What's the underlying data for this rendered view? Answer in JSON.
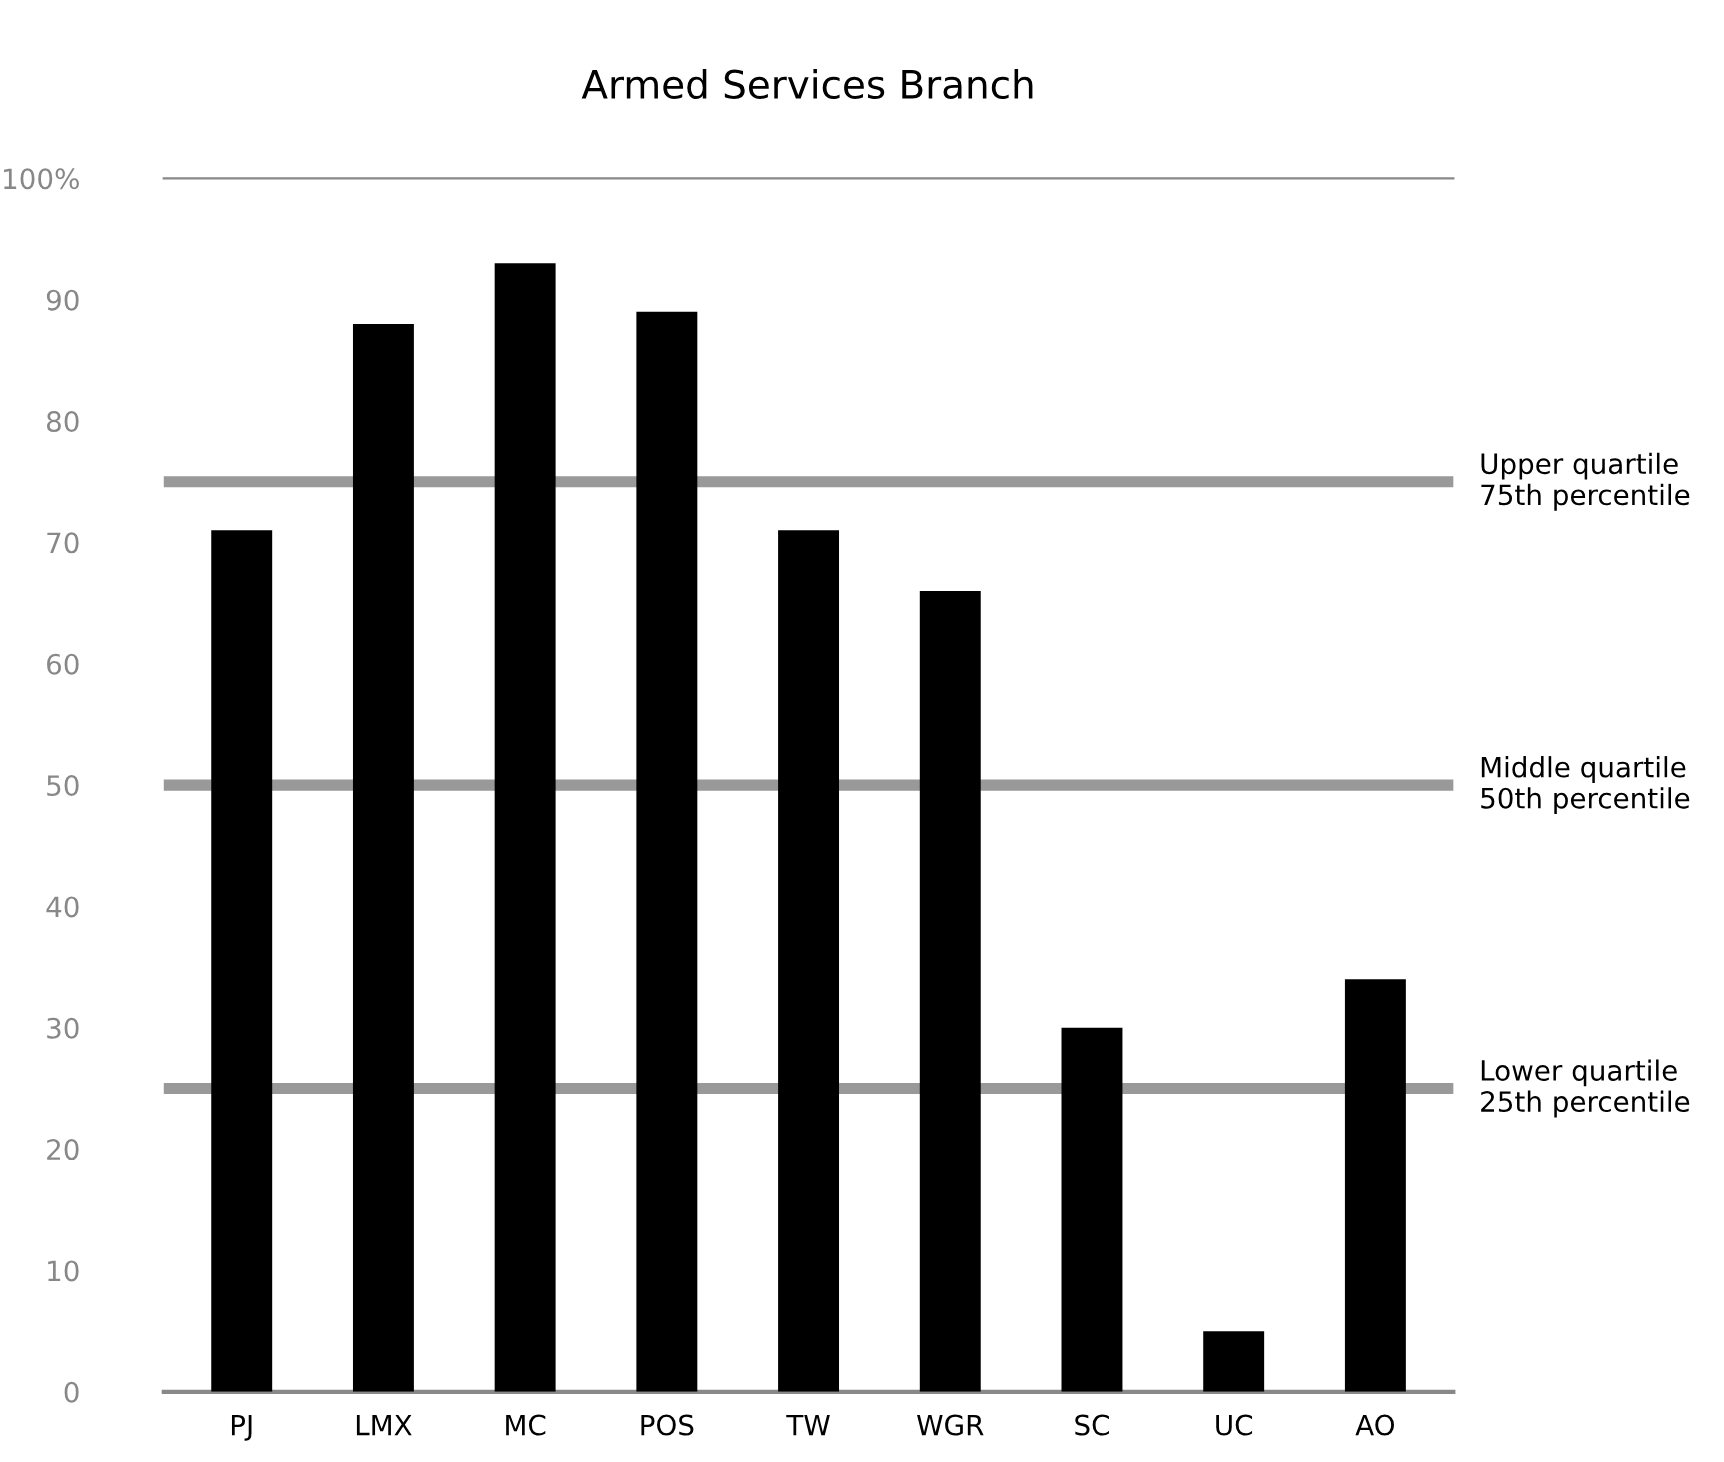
{
  "chart_data": {
    "type": "bar",
    "title": "Armed Services Branch",
    "categories": [
      "PJ",
      "LMX",
      "MC",
      "POS",
      "TW",
      "WGR",
      "SC",
      "UC",
      "AO"
    ],
    "values": [
      71,
      88,
      93,
      89,
      71,
      66,
      30,
      5,
      34
    ],
    "color": "#000000",
    "ylim": [
      0,
      100
    ],
    "yticks": [
      0,
      10,
      20,
      30,
      40,
      50,
      60,
      70,
      80,
      90,
      {
        "value": 100,
        "label": "100%"
      }
    ],
    "grid": false,
    "ref_lines": [
      {
        "axis": "y",
        "value": 75,
        "label": "Upper quartile\n75th percentile",
        "color": "#999999"
      },
      {
        "axis": "y",
        "value": 50,
        "label": "Middle quartile\n50th percentile",
        "color": "#999999"
      },
      {
        "axis": "y",
        "value": 25,
        "label": "Lower quartile\n25th percentile",
        "color": "#999999"
      }
    ]
  }
}
